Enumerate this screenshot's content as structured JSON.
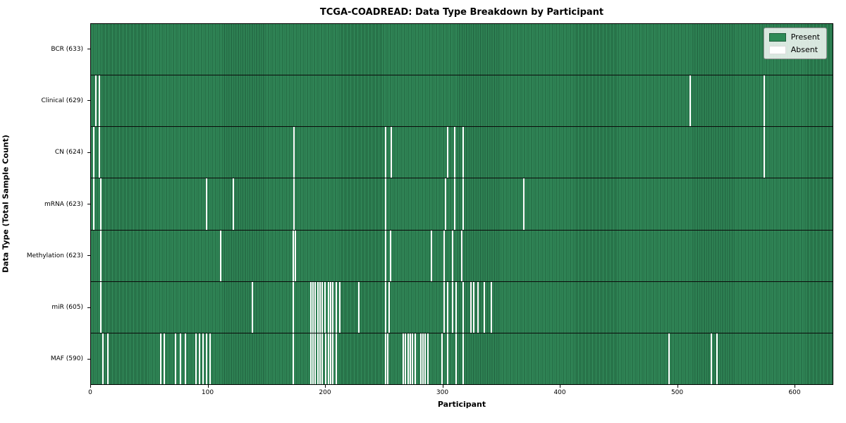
{
  "chart_data": {
    "type": "heatmap",
    "title": "TCGA-COADREAD: Data Type Breakdown by Participant",
    "xlabel": "Participant",
    "ylabel": "Data Type (Total Sample Count)",
    "x_ticks": [
      0,
      100,
      200,
      300,
      400,
      500,
      600
    ],
    "x_max": 633,
    "n_rows": 7,
    "grid": false,
    "legend_position": "upper right",
    "colors": {
      "present": "#2e8b57",
      "present_edge": "#1d5b3a",
      "absent": "#ffffff",
      "axis": "#000000"
    },
    "legend": [
      {
        "label": "Present",
        "color": "#2e8b57"
      },
      {
        "label": "Absent",
        "color": "#ffffff"
      }
    ],
    "rows": [
      {
        "data_type": "BCR",
        "label": "BCR (633)",
        "total_samples": 633,
        "absent_participants": []
      },
      {
        "data_type": "Clinical",
        "label": "Clinical (629)",
        "total_samples": 629,
        "absent_participants": [
          4,
          7,
          511,
          574
        ]
      },
      {
        "data_type": "CN",
        "label": "CN (624)",
        "total_samples": 624,
        "absent_participants": [
          2,
          7,
          173,
          251,
          256,
          304,
          310,
          317,
          574
        ]
      },
      {
        "data_type": "mRNA",
        "label": "mRNA (623)",
        "total_samples": 623,
        "absent_participants": [
          2,
          8,
          98,
          121,
          173,
          251,
          302,
          310,
          317,
          369
        ]
      },
      {
        "data_type": "Methylation",
        "label": "Methylation (623)",
        "total_samples": 623,
        "absent_participants": [
          8,
          110,
          172,
          174,
          251,
          255,
          290,
          301,
          308,
          316
        ]
      },
      {
        "data_type": "miR",
        "label": "miR (605)",
        "total_samples": 605,
        "absent_participants": [
          8,
          137,
          172,
          187,
          189,
          191,
          193,
          195,
          197,
          199,
          202,
          204,
          206,
          209,
          212,
          228,
          251,
          254,
          301,
          304,
          308,
          311,
          317,
          324,
          326,
          330,
          335,
          341
        ]
      },
      {
        "data_type": "MAF",
        "label": "MAF (590)",
        "total_samples": 590,
        "absent_participants": [
          10,
          14,
          59,
          62,
          72,
          76,
          80,
          89,
          92,
          95,
          98,
          101,
          172,
          187,
          189,
          191,
          193,
          195,
          197,
          200,
          202,
          204,
          206,
          209,
          251,
          253,
          266,
          268,
          270,
          272,
          274,
          276,
          281,
          283,
          285,
          287,
          299,
          304,
          311,
          317,
          493,
          529,
          534
        ]
      }
    ]
  }
}
